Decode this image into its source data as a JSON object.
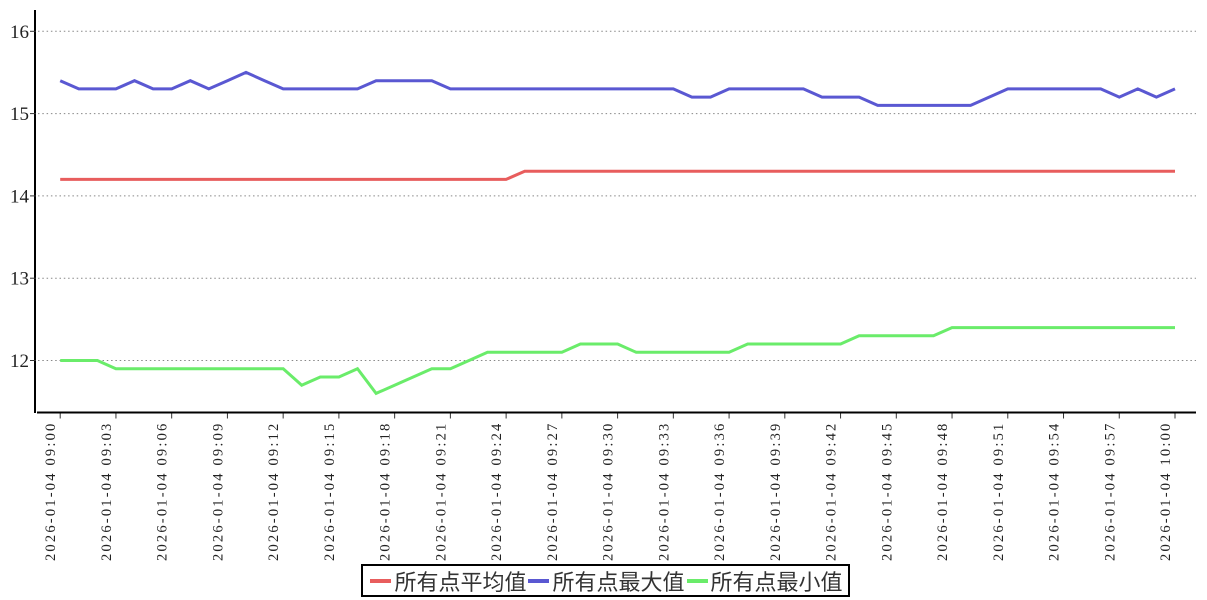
{
  "chart_data": {
    "type": "line",
    "title": "",
    "xlabel": "",
    "ylabel": "",
    "x_axis": {
      "tick_labels": [
        "2026-01-04 09:00",
        "2026-01-04 09:03",
        "2026-01-04 09:06",
        "2026-01-04 09:09",
        "2026-01-04 09:12",
        "2026-01-04 09:15",
        "2026-01-04 09:18",
        "2026-01-04 09:21",
        "2026-01-04 09:24",
        "2026-01-04 09:27",
        "2026-01-04 09:30",
        "2026-01-04 09:33",
        "2026-01-04 09:36",
        "2026-01-04 09:39",
        "2026-01-04 09:42",
        "2026-01-04 09:45",
        "2026-01-04 09:48",
        "2026-01-04 09:51",
        "2026-01-04 09:54",
        "2026-01-04 09:57",
        "2026-01-04 10:00"
      ],
      "data_start": "2026-01-04 09:00",
      "data_end": "2026-01-04 10:00",
      "data_interval_minutes": 1,
      "label_rotation_deg": -90
    },
    "y_axis": {
      "tick_labels": [
        16,
        15,
        14,
        13,
        12
      ],
      "ylim": [
        11.45,
        16.3
      ],
      "grid": "horizontal-dotted"
    },
    "legend": {
      "position": "bottom-center",
      "border": true
    },
    "series": [
      {
        "name": "所有点平均值",
        "color": "#e85d5d",
        "values": [
          14.2,
          14.2,
          14.2,
          14.2,
          14.2,
          14.2,
          14.2,
          14.2,
          14.2,
          14.2,
          14.2,
          14.2,
          14.2,
          14.2,
          14.2,
          14.2,
          14.2,
          14.2,
          14.2,
          14.2,
          14.2,
          14.2,
          14.2,
          14.2,
          14.2,
          14.3,
          14.3,
          14.3,
          14.3,
          14.3,
          14.3,
          14.3,
          14.3,
          14.3,
          14.3,
          14.3,
          14.3,
          14.3,
          14.3,
          14.3,
          14.3,
          14.3,
          14.3,
          14.3,
          14.3,
          14.3,
          14.3,
          14.3,
          14.3,
          14.3,
          14.3,
          14.3,
          14.3,
          14.3,
          14.3,
          14.3,
          14.3,
          14.3,
          14.3,
          14.3,
          14.3
        ]
      },
      {
        "name": "所有点最大值",
        "color": "#5a58d2",
        "values": [
          15.4,
          15.3,
          15.3,
          15.3,
          15.4,
          15.3,
          15.3,
          15.4,
          15.3,
          15.4,
          15.5,
          15.4,
          15.3,
          15.3,
          15.3,
          15.3,
          15.3,
          15.4,
          15.4,
          15.4,
          15.4,
          15.3,
          15.3,
          15.3,
          15.3,
          15.3,
          15.3,
          15.3,
          15.3,
          15.3,
          15.3,
          15.3,
          15.3,
          15.3,
          15.2,
          15.2,
          15.3,
          15.3,
          15.3,
          15.3,
          15.3,
          15.2,
          15.2,
          15.2,
          15.1,
          15.1,
          15.1,
          15.1,
          15.1,
          15.1,
          15.2,
          15.3,
          15.3,
          15.3,
          15.3,
          15.3,
          15.3,
          15.2,
          15.3,
          15.2,
          15.3
        ]
      },
      {
        "name": "所有点最小值",
        "color": "#6aec6a",
        "values": [
          12.0,
          12.0,
          12.0,
          11.9,
          11.9,
          11.9,
          11.9,
          11.9,
          11.9,
          11.9,
          11.9,
          11.9,
          11.9,
          11.7,
          11.8,
          11.8,
          11.9,
          11.6,
          11.7,
          11.8,
          11.9,
          11.9,
          12.0,
          12.1,
          12.1,
          12.1,
          12.1,
          12.1,
          12.2,
          12.2,
          12.2,
          12.1,
          12.1,
          12.1,
          12.1,
          12.1,
          12.1,
          12.2,
          12.2,
          12.2,
          12.2,
          12.2,
          12.2,
          12.3,
          12.3,
          12.3,
          12.3,
          12.3,
          12.4,
          12.4,
          12.4,
          12.4,
          12.4,
          12.4,
          12.4,
          12.4,
          12.4,
          12.4,
          12.4,
          12.4,
          12.4
        ]
      }
    ]
  }
}
